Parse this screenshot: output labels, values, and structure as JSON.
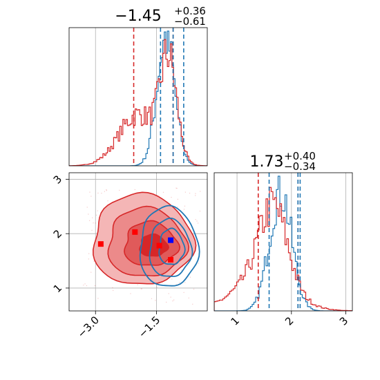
{
  "chart_data": {
    "type": "corner",
    "series": [
      {
        "color": "#d62728"
      },
      {
        "color": "#1f77b4"
      }
    ],
    "panels": [
      {
        "panel": "hist-param-1",
        "type": "histogram",
        "title": {
          "main": "−1.45",
          "upper": "+0.36",
          "lower": "−0.61"
        },
        "xlim": [
          -3.65,
          -0.25
        ],
        "red_quantiles": [
          -2.06,
          -1.09
        ],
        "blue_quantiles": [
          -1.4,
          -1.09,
          -0.83
        ],
        "grid_x": [
          -3.0,
          -1.5
        ]
      },
      {
        "panel": "scatter-2d",
        "type": "contour",
        "xlim": [
          -3.65,
          -0.25
        ],
        "ylim": [
          0.58,
          3.12
        ],
        "x_ticks": [
          "−3.0",
          "−1.5"
        ],
        "x_tick_values": [
          -3.0,
          -1.5
        ],
        "y_ticks": [
          "1",
          "2",
          "3"
        ],
        "y_tick_values": [
          1,
          2,
          3
        ],
        "blue_point": {
          "x": -1.15,
          "y": 1.88
        },
        "red_points": [
          {
            "x": -2.87,
            "y": 1.81
          },
          {
            "x": -2.03,
            "y": 2.03
          },
          {
            "x": -1.43,
            "y": 1.78
          },
          {
            "x": -1.15,
            "y": 1.52
          }
        ]
      },
      {
        "panel": "hist-param-2",
        "type": "histogram",
        "title": {
          "main": "1.73",
          "upper": "+0.40",
          "lower": "−0.34"
        },
        "xlim": [
          0.58,
          3.12
        ],
        "red_quantiles": [
          1.39,
          2.12
        ],
        "blue_quantiles": [
          1.59,
          2.12,
          2.16
        ],
        "x_ticks": [
          "1",
          "2",
          "3"
        ],
        "x_tick_values": [
          1,
          2,
          3
        ]
      }
    ]
  }
}
